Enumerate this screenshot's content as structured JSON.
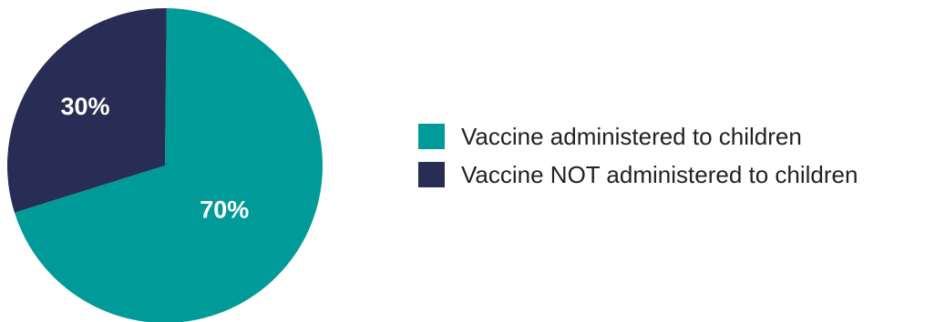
{
  "chart_data": {
    "type": "pie",
    "title": "",
    "slices": [
      {
        "name": "Vaccine administered to children",
        "value": 70,
        "label": "70%",
        "color": "#009b98"
      },
      {
        "name": "Vaccine NOT administered to children",
        "value": 30,
        "label": "30%",
        "color": "#272d54"
      }
    ],
    "legend_position": "right"
  }
}
